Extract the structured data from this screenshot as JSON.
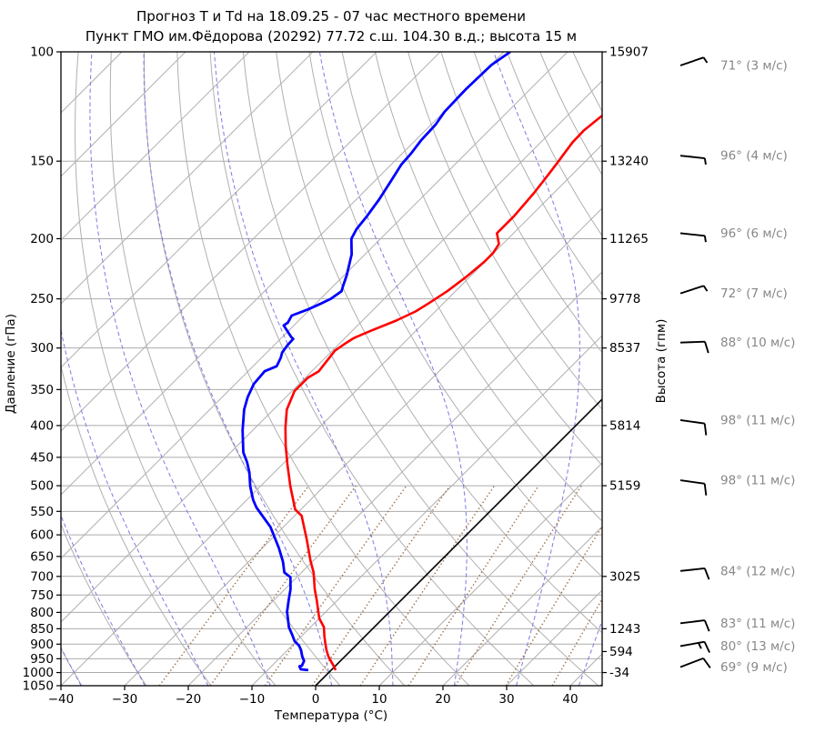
{
  "title": "Прогноз Т и Td на 18.09.25 - 07 час местного времени",
  "subtitle": "Пункт ГМО им.Фёдорова (20292) 77.72 с.ш. 104.30 в.д.; высота 15 м",
  "chart_data": {
    "type": "line",
    "variant": "skew-t-log-p-sounding",
    "xlabel": "Температура (°C)",
    "ylabel_left": "Давление (гПа)",
    "ylabel_right": "Высота (гпм)",
    "xlim": [
      -40,
      45
    ],
    "pressure_lim": [
      100,
      1050
    ],
    "grid": true,
    "temp_ticks": [
      {
        "value": -40,
        "label": "−40"
      },
      {
        "value": -30,
        "label": "−30"
      },
      {
        "value": -20,
        "label": "−20"
      },
      {
        "value": -10,
        "label": "−10"
      },
      {
        "value": 0,
        "label": "0"
      },
      {
        "value": 10,
        "label": "10"
      },
      {
        "value": 20,
        "label": "20"
      },
      {
        "value": 30,
        "label": "30"
      },
      {
        "value": 40,
        "label": "40"
      }
    ],
    "pressure_ticks": [
      100,
      150,
      200,
      250,
      300,
      350,
      400,
      450,
      500,
      550,
      600,
      650,
      700,
      750,
      800,
      850,
      900,
      950,
      1000,
      1050
    ],
    "height_ticks": [
      {
        "p": 100,
        "label": "15907"
      },
      {
        "p": 150,
        "label": "13240"
      },
      {
        "p": 200,
        "label": "11265"
      },
      {
        "p": 250,
        "label": "9778"
      },
      {
        "p": 300,
        "label": "8537"
      },
      {
        "p": 400,
        "label": "5814"
      },
      {
        "p": 500,
        "label": "5159"
      },
      {
        "p": 700,
        "label": "3025"
      },
      {
        "p": 850,
        "label": "1243"
      },
      {
        "p": 925,
        "label": "594"
      },
      {
        "p": 1000,
        "label": "-34"
      }
    ],
    "series": [
      {
        "name": "T",
        "color": "#ff0000",
        "width": 2.6,
        "points": [
          [
            991,
            0.7
          ],
          [
            977,
            -0.2
          ],
          [
            961,
            -1.3
          ],
          [
            942,
            -2.6
          ],
          [
            920,
            -3.9
          ],
          [
            898,
            -5.1
          ],
          [
            874,
            -6.4
          ],
          [
            845,
            -7.9
          ],
          [
            818,
            -10
          ],
          [
            764,
            -13.3
          ],
          [
            734,
            -15.3
          ],
          [
            690,
            -18.1
          ],
          [
            661,
            -20.4
          ],
          [
            610,
            -24.4
          ],
          [
            559,
            -28.9
          ],
          [
            546,
            -30.9
          ],
          [
            501,
            -35.3
          ],
          [
            461,
            -39.3
          ],
          [
            431,
            -42.4
          ],
          [
            403,
            -45.3
          ],
          [
            377,
            -47.9
          ],
          [
            352,
            -49.6
          ],
          [
            335,
            -49.6
          ],
          [
            327,
            -48.9
          ],
          [
            303,
            -49.6
          ],
          [
            295,
            -49.1
          ],
          [
            290,
            -48.7
          ],
          [
            288,
            -48.4
          ],
          [
            281,
            -47
          ],
          [
            271,
            -44.7
          ],
          [
            262,
            -43.1
          ],
          [
            254,
            -42.3
          ],
          [
            243,
            -41.3
          ],
          [
            231,
            -40.6
          ],
          [
            218,
            -40.1
          ],
          [
            211,
            -40.1
          ],
          [
            204,
            -40.6
          ],
          [
            196,
            -42.6
          ],
          [
            184,
            -42.6
          ],
          [
            169,
            -43.1
          ],
          [
            160,
            -43.6
          ],
          [
            152,
            -44.1
          ],
          [
            140,
            -45
          ],
          [
            134,
            -45.1
          ],
          [
            126,
            -44.5
          ]
        ]
      },
      {
        "name": "Td",
        "color": "#0000ff",
        "width": 2.8,
        "points": [
          [
            991,
            -3.6
          ],
          [
            988,
            -4.9
          ],
          [
            977,
            -5.6
          ],
          [
            975,
            -5.3
          ],
          [
            958,
            -5.7
          ],
          [
            942,
            -6.7
          ],
          [
            920,
            -7.9
          ],
          [
            905,
            -8.9
          ],
          [
            890,
            -10.3
          ],
          [
            869,
            -11.7
          ],
          [
            845,
            -13.4
          ],
          [
            798,
            -16.1
          ],
          [
            764,
            -17.7
          ],
          [
            734,
            -19.1
          ],
          [
            702,
            -21
          ],
          [
            690,
            -22.7
          ],
          [
            663,
            -24.6
          ],
          [
            630,
            -27.4
          ],
          [
            583,
            -32
          ],
          [
            542,
            -37.3
          ],
          [
            527,
            -39
          ],
          [
            501,
            -41.6
          ],
          [
            476,
            -43.9
          ],
          [
            458,
            -45.9
          ],
          [
            442,
            -48
          ],
          [
            407,
            -51.6
          ],
          [
            377,
            -54.6
          ],
          [
            360,
            -56
          ],
          [
            343,
            -57.1
          ],
          [
            327,
            -57.4
          ],
          [
            321,
            -56.3
          ],
          [
            311,
            -57
          ],
          [
            305,
            -57.6
          ],
          [
            297,
            -57.9
          ],
          [
            290,
            -58
          ],
          [
            288,
            -58.6
          ],
          [
            276,
            -61.6
          ],
          [
            273,
            -61.4
          ],
          [
            266,
            -61.9
          ],
          [
            260,
            -60.3
          ],
          [
            254,
            -59.1
          ],
          [
            250,
            -58.4
          ],
          [
            243,
            -57.9
          ],
          [
            239,
            -58.4
          ],
          [
            229,
            -59.6
          ],
          [
            212,
            -62.1
          ],
          [
            200,
            -64.6
          ],
          [
            193,
            -65.3
          ],
          [
            184,
            -65.7
          ],
          [
            173,
            -66.4
          ],
          [
            162,
            -67.4
          ],
          [
            152,
            -68.4
          ],
          [
            146,
            -68.6
          ],
          [
            139,
            -69.1
          ],
          [
            131,
            -69.3
          ],
          [
            125,
            -69.9
          ],
          [
            115,
            -70.1
          ],
          [
            105,
            -69.9
          ],
          [
            100,
            -69
          ]
        ]
      }
    ],
    "winds": [
      {
        "p": 100,
        "dir": 71,
        "speed": 3,
        "label": "71° (3 м/с)"
      },
      {
        "p": 150,
        "dir": 96,
        "speed": 4,
        "label": "96° (4 м/с)"
      },
      {
        "p": 200,
        "dir": 96,
        "speed": 6,
        "label": "96° (6 м/с)"
      },
      {
        "p": 250,
        "dir": 72,
        "speed": 7,
        "label": "72° (7 м/с)"
      },
      {
        "p": 300,
        "dir": 88,
        "speed": 10,
        "label": "88° (10 м/с)"
      },
      {
        "p": 400,
        "dir": 98,
        "speed": 11,
        "label": "98° (11 м/с)"
      },
      {
        "p": 500,
        "dir": 98,
        "speed": 11,
        "label": "98° (11 м/с)"
      },
      {
        "p": 700,
        "dir": 84,
        "speed": 12,
        "label": "84° (12 м/с)"
      },
      {
        "p": 850,
        "dir": 83,
        "speed": 11,
        "label": "83° (11 м/с)"
      },
      {
        "p": 925,
        "dir": 80,
        "speed": 13,
        "label": "80° (13 м/с)"
      },
      {
        "p": 1000,
        "dir": 69,
        "speed": 9,
        "label": "69° (9 м/с)"
      }
    ],
    "layout_hints": {
      "isotherm_step_c": 10,
      "dry_adiabats_theta_c": [
        -40,
        -30,
        -20,
        -10,
        0,
        10,
        20,
        30,
        40,
        50,
        60,
        70,
        80,
        90,
        100,
        110,
        120,
        130,
        140,
        150
      ],
      "moist_adiabats_thetaw_c": [
        -60,
        -50,
        -40,
        -30,
        -20,
        -10,
        0,
        10,
        20,
        30,
        40
      ],
      "mixing_ratio_g_kg": [
        0.5,
        1,
        2,
        3.5,
        6,
        10,
        16,
        26,
        40,
        62
      ],
      "mixing_ratio_top_p": 500,
      "colors": {
        "isotherm": "#b0b0b0",
        "pressure_grid": "#ababab",
        "dry_adiabat": "#b0b0b0",
        "moist_adiabat": "#7b7be0",
        "mixing_ratio": "#9b6b42",
        "zero_isotherm": "#000000",
        "frame": "#000000",
        "wind_label": "#878787"
      }
    }
  }
}
